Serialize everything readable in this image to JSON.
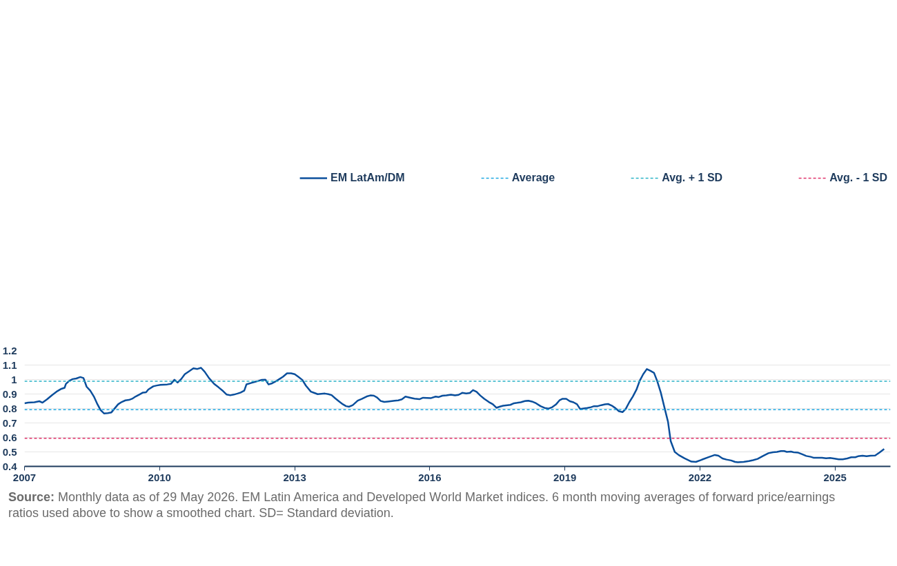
{
  "chart_data": {
    "type": "line",
    "x": [
      2007.0,
      2007.08,
      2007.22,
      2007.33,
      2007.4,
      2007.5,
      2007.61,
      2007.73,
      2007.82,
      2007.89,
      2007.92,
      2007.99,
      2008.07,
      2008.15,
      2008.24,
      2008.31,
      2008.38,
      2008.46,
      2008.54,
      2008.62,
      2008.69,
      2008.77,
      2008.85,
      2008.93,
      2009.01,
      2009.08,
      2009.16,
      2009.24,
      2009.32,
      2009.39,
      2009.47,
      2009.55,
      2009.63,
      2009.7,
      2009.75,
      2009.86,
      2009.94,
      2010.02,
      2010.17,
      2010.25,
      2010.33,
      2010.4,
      2010.48,
      2010.56,
      2010.64,
      2010.75,
      2010.84,
      2010.92,
      2011.0,
      2011.1,
      2011.21,
      2011.31,
      2011.41,
      2011.49,
      2011.57,
      2011.65,
      2011.73,
      2011.8,
      2011.88,
      2011.93,
      2012.04,
      2012.11,
      2012.19,
      2012.27,
      2012.35,
      2012.42,
      2012.5,
      2012.58,
      2012.66,
      2012.74,
      2012.83,
      2012.92,
      2013.0,
      2013.08,
      2013.17,
      2013.25,
      2013.36,
      2013.44,
      2013.51,
      2013.67,
      2013.75,
      2013.82,
      2013.9,
      2013.98,
      2014.07,
      2014.14,
      2014.21,
      2014.29,
      2014.4,
      2014.49,
      2014.6,
      2014.68,
      2014.76,
      2014.83,
      2014.91,
      2014.99,
      2015.07,
      2015.22,
      2015.3,
      2015.38,
      2015.46,
      2015.57,
      2015.66,
      2015.77,
      2015.85,
      2016.03,
      2016.13,
      2016.2,
      2016.28,
      2016.37,
      2016.47,
      2016.56,
      2016.64,
      2016.72,
      2016.81,
      2016.89,
      2016.96,
      2017.04,
      2017.12,
      2017.21,
      2017.31,
      2017.4,
      2017.48,
      2017.56,
      2017.63,
      2017.79,
      2017.87,
      2017.94,
      2018.02,
      2018.11,
      2018.19,
      2018.27,
      2018.36,
      2018.46,
      2018.55,
      2018.64,
      2018.72,
      2018.8,
      2018.88,
      2018.95,
      2019.03,
      2019.11,
      2019.19,
      2019.27,
      2019.34,
      2019.42,
      2019.5,
      2019.58,
      2019.65,
      2019.73,
      2019.81,
      2019.89,
      2019.96,
      2020.04,
      2020.12,
      2020.2,
      2020.28,
      2020.35,
      2020.43,
      2020.51,
      2020.59,
      2020.66,
      2020.74,
      2020.82,
      2020.9,
      2020.98,
      2021.05,
      2021.13,
      2021.22,
      2021.29,
      2021.35,
      2021.44,
      2021.53,
      2021.66,
      2021.81,
      2021.91,
      2022.03,
      2022.19,
      2022.33,
      2022.41,
      2022.5,
      2022.59,
      2022.69,
      2022.78,
      2022.84,
      2022.97,
      2023.09,
      2023.18,
      2023.28,
      2023.4,
      2023.52,
      2023.62,
      2023.71,
      2023.8,
      2023.87,
      2023.93,
      2024.02,
      2024.08,
      2024.18,
      2024.27,
      2024.36,
      2024.46,
      2024.52,
      2024.61,
      2024.71,
      2024.8,
      2024.89,
      2024.99,
      2025.08,
      2025.17,
      2025.27,
      2025.36,
      2025.45,
      2025.51,
      2025.61,
      2025.7,
      2025.79,
      2025.89,
      2025.98,
      2026.09
    ],
    "series": [
      {
        "name": "EM LatAm/DM",
        "color": "#0b4f9c",
        "values": [
          0.836,
          0.84,
          0.843,
          0.85,
          0.84,
          0.863,
          0.892,
          0.92,
          0.936,
          0.943,
          0.97,
          0.99,
          1.003,
          1.007,
          1.017,
          1.01,
          0.95,
          0.923,
          0.883,
          0.829,
          0.789,
          0.765,
          0.768,
          0.773,
          0.803,
          0.829,
          0.845,
          0.856,
          0.859,
          0.867,
          0.883,
          0.896,
          0.91,
          0.912,
          0.931,
          0.953,
          0.959,
          0.963,
          0.966,
          0.97,
          0.998,
          0.979,
          1.003,
          1.037,
          1.054,
          1.077,
          1.073,
          1.081,
          1.054,
          1.009,
          0.97,
          0.946,
          0.92,
          0.896,
          0.891,
          0.896,
          0.903,
          0.91,
          0.923,
          0.967,
          0.977,
          0.983,
          0.99,
          0.998,
          0.999,
          0.966,
          0.974,
          0.987,
          1.003,
          1.019,
          1.043,
          1.043,
          1.037,
          1.019,
          0.997,
          0.957,
          0.916,
          0.907,
          0.899,
          0.903,
          0.899,
          0.892,
          0.87,
          0.85,
          0.829,
          0.816,
          0.812,
          0.823,
          0.854,
          0.866,
          0.883,
          0.89,
          0.888,
          0.876,
          0.852,
          0.845,
          0.848,
          0.854,
          0.856,
          0.863,
          0.882,
          0.874,
          0.868,
          0.864,
          0.874,
          0.872,
          0.882,
          0.879,
          0.888,
          0.89,
          0.895,
          0.89,
          0.894,
          0.908,
          0.904,
          0.907,
          0.927,
          0.915,
          0.89,
          0.867,
          0.845,
          0.829,
          0.805,
          0.813,
          0.819,
          0.825,
          0.836,
          0.839,
          0.843,
          0.851,
          0.854,
          0.848,
          0.836,
          0.816,
          0.804,
          0.799,
          0.809,
          0.827,
          0.856,
          0.867,
          0.867,
          0.85,
          0.843,
          0.829,
          0.796,
          0.8,
          0.804,
          0.809,
          0.816,
          0.816,
          0.823,
          0.829,
          0.831,
          0.82,
          0.803,
          0.781,
          0.775,
          0.796,
          0.843,
          0.883,
          0.93,
          0.99,
          1.037,
          1.072,
          1.06,
          1.046,
          0.99,
          0.91,
          0.796,
          0.709,
          0.575,
          0.5,
          0.478,
          0.455,
          0.433,
          0.431,
          0.445,
          0.464,
          0.479,
          0.474,
          0.455,
          0.447,
          0.441,
          0.431,
          0.429,
          0.431,
          0.437,
          0.443,
          0.452,
          0.472,
          0.491,
          0.498,
          0.5,
          0.506,
          0.506,
          0.5,
          0.502,
          0.498,
          0.495,
          0.484,
          0.472,
          0.466,
          0.46,
          0.46,
          0.459,
          0.456,
          0.458,
          0.454,
          0.449,
          0.449,
          0.455,
          0.463,
          0.463,
          0.47,
          0.474,
          0.47,
          0.474,
          0.475,
          0.494,
          0.52
        ]
      }
    ],
    "ref_lines": [
      {
        "axis": "y",
        "value": 0.792,
        "label": "Average",
        "color": "#1ea7e1",
        "line_style": "dashed"
      },
      {
        "axis": "y",
        "value": 0.988,
        "label": "Avg. + 1 SD",
        "color": "#2ab3c6",
        "line_style": "dashed"
      },
      {
        "axis": "y",
        "value": 0.594,
        "label": "Avg. - 1 SD",
        "color": "#e0336a",
        "line_style": "dashed"
      }
    ],
    "xlim": [
      2007,
      2026.23
    ],
    "xticks": [
      2007,
      2010,
      2013,
      2016,
      2019,
      2022,
      2025
    ],
    "ylim": [
      0.4,
      1.2
    ],
    "yticks": [
      0.4,
      0.5,
      0.6,
      0.7,
      0.8,
      0.9,
      1,
      1.1,
      1.2
    ],
    "grid": "y",
    "legend": "top",
    "marker": "none",
    "line_style": "solid",
    "annotations": [
      "Source: Monthly data as of 29 May 2026. EM Latin America and Developed World Market indices. 6 month moving averages of forward price/earnings ratios used above to show a smoothed chart. SD= Standard deviation."
    ]
  }
}
